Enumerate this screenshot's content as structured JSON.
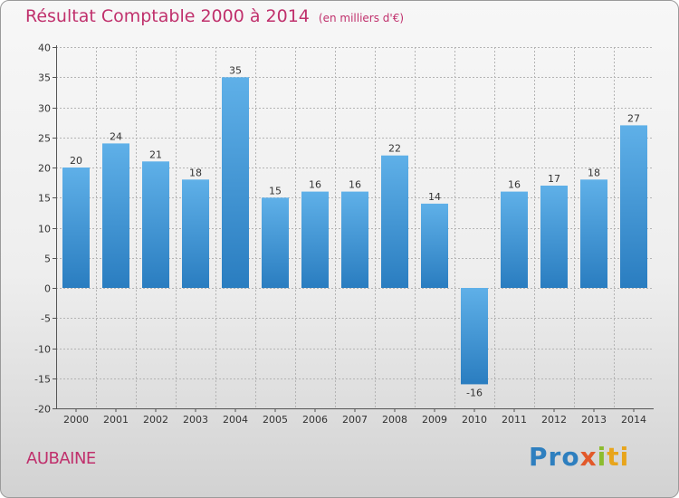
{
  "header": {
    "title": "Résultat Comptable 2000 à 2014",
    "subtitle": "(en milliers d'€)"
  },
  "footer": {
    "commune": "AUBAINE",
    "logo_parts": [
      "Pro",
      "x",
      "i",
      "ti"
    ]
  },
  "colors": {
    "title": "#c0306c",
    "bar_top": "#5fb0e8",
    "bar_bottom": "#2a7dc0",
    "grid": "#b4b4b4"
  },
  "chart_data": {
    "type": "bar",
    "title": "Résultat Comptable 2000 à 2014",
    "subtitle": "(en milliers d'€)",
    "categories": [
      "2000",
      "2001",
      "2002",
      "2003",
      "2004",
      "2005",
      "2006",
      "2007",
      "2008",
      "2009",
      "2010",
      "2011",
      "2012",
      "2013",
      "2014"
    ],
    "values": [
      20,
      24,
      21,
      18,
      35,
      15,
      16,
      16,
      22,
      14,
      -16,
      16,
      17,
      18,
      27
    ],
    "value_labels": [
      "20",
      "24",
      "21",
      "18",
      "35",
      "15",
      "16",
      "16",
      "22",
      "14",
      "-16",
      "16",
      "17",
      "18",
      "27"
    ],
    "ylim": [
      -20,
      40
    ],
    "yticks": [
      40,
      35,
      30,
      25,
      20,
      15,
      10,
      5,
      0,
      -5,
      -10,
      -15,
      -20
    ],
    "ytick_labels": [
      "40",
      "35",
      "30",
      "25",
      "20",
      "15",
      "10",
      "5",
      "0",
      "-5",
      "-10",
      "-15",
      "-20"
    ],
    "xlabel": "",
    "ylabel": "",
    "grid": true
  }
}
